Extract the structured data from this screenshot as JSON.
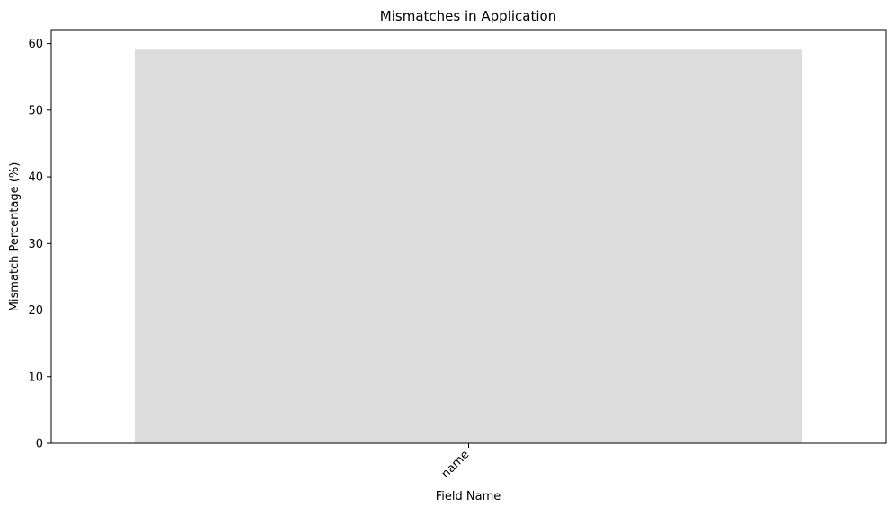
{
  "chart_data": {
    "type": "bar",
    "title": "Mismatches in Application",
    "xlabel": "Field Name",
    "ylabel": "Mismatch Percentage (%)",
    "categories": [
      "name"
    ],
    "values": [
      59.1
    ],
    "ylim": [
      0,
      62.1
    ],
    "yticks": [
      0,
      10,
      20,
      30,
      40,
      50,
      60
    ],
    "grid": false,
    "legend": "none",
    "colors": {
      "bar": "#dcdcdc",
      "axis": "#000000",
      "background": "#ffffff"
    }
  }
}
